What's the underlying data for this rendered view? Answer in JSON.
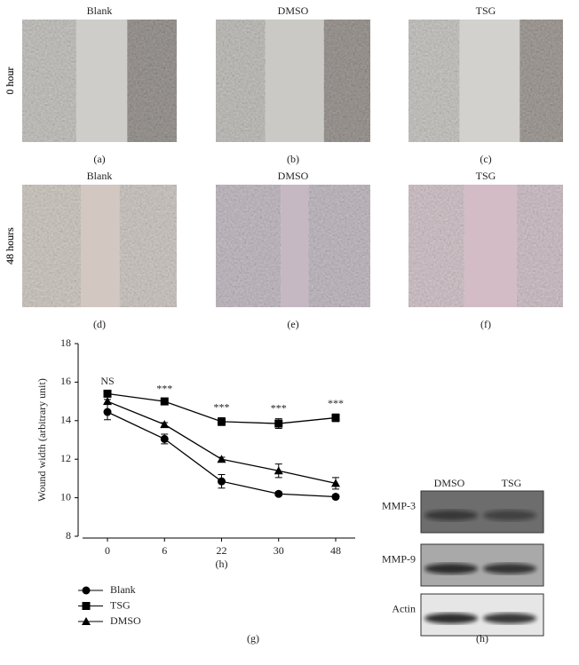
{
  "panels": [
    {
      "title": "Blank",
      "time": "0 hour",
      "caption": "(a)"
    },
    {
      "title": "DMSO",
      "time": "0 hour",
      "caption": "(b)"
    },
    {
      "title": "TSG",
      "time": "0 hour",
      "caption": "(c)"
    },
    {
      "title": "Blank",
      "time": "48 hours",
      "caption": "(d)"
    },
    {
      "title": "DMSO",
      "time": "48 hours",
      "caption": "(e)"
    },
    {
      "title": "TSG",
      "time": "48 hours",
      "caption": "(f)"
    }
  ],
  "chart_data": {
    "type": "line",
    "x_label": "(h)",
    "y_label": "Wound width (arbitrary unit)",
    "categories": [
      "0",
      "6",
      "22",
      "30",
      "48"
    ],
    "series": [
      {
        "name": "Blank",
        "color": "#000000",
        "marker": "circle",
        "values": [
          14.45,
          13.05,
          10.85,
          10.2,
          10.05
        ],
        "errors": [
          0.4,
          0.25,
          0.35,
          0.1,
          0.1
        ]
      },
      {
        "name": "TSG",
        "color": "#000000",
        "marker": "square",
        "values": [
          15.4,
          15.0,
          13.95,
          13.85,
          14.15
        ],
        "errors": [
          0.1,
          0.1,
          0.2,
          0.25,
          0.2
        ]
      },
      {
        "name": "DMSO",
        "color": "#000000",
        "marker": "triangle",
        "values": [
          15.0,
          13.8,
          12.0,
          11.4,
          10.75
        ],
        "errors": [
          0.1,
          0.1,
          0.1,
          0.35,
          0.3
        ]
      }
    ],
    "significance": [
      "NS",
      "***",
      "***",
      "***",
      "***"
    ],
    "ylim": [
      8,
      18
    ],
    "yticks": [
      8,
      10,
      12,
      14,
      16,
      18
    ],
    "caption": "(g)"
  },
  "blot": {
    "columns": [
      "DMSO",
      "TSG"
    ],
    "rows": [
      "MMP-3",
      "MMP-9",
      "Actin"
    ],
    "caption": "(h)"
  }
}
